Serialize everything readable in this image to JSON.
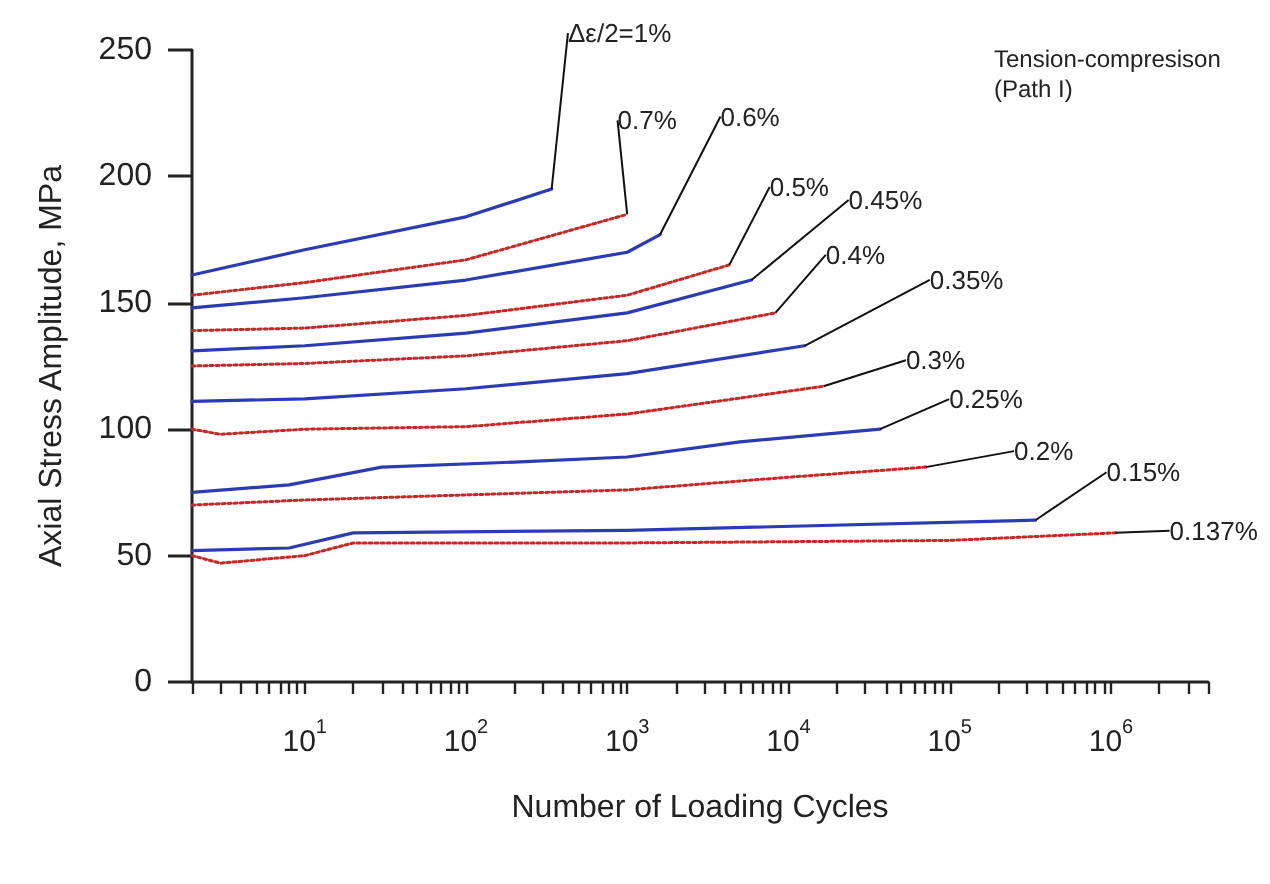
{
  "chart_data": {
    "type": "line",
    "xlabel": "Number of Loading Cycles",
    "ylabel": "Axial Stress Amplitude, MPa",
    "annotations": [
      "Tension-compresison (Path I)"
    ],
    "log": "x",
    "grid": false,
    "legend": false,
    "marker": "none",
    "xlim": [
      2,
      4000000
    ],
    "ylim": [
      0,
      250
    ],
    "yticks": [
      0,
      50,
      100,
      150,
      200,
      250
    ],
    "xticks": [
      {
        "value": 2,
        "label": null
      },
      {
        "value": 3,
        "label": null
      },
      {
        "value": 4,
        "label": null
      },
      {
        "value": 5,
        "label": null
      },
      {
        "value": 6,
        "label": null
      },
      {
        "value": 7,
        "label": null
      },
      {
        "value": 8,
        "label": null
      },
      {
        "value": 9,
        "label": null
      },
      {
        "value": 10,
        "label": "10$^{1}$"
      },
      {
        "value": 20,
        "label": null
      },
      {
        "value": 30,
        "label": null
      },
      {
        "value": 40,
        "label": null
      },
      {
        "value": 50,
        "label": null
      },
      {
        "value": 60,
        "label": null
      },
      {
        "value": 70,
        "label": null
      },
      {
        "value": 80,
        "label": null
      },
      {
        "value": 90,
        "label": null
      },
      {
        "value": 100,
        "label": "10$^{2}$"
      },
      {
        "value": 200,
        "label": null
      },
      {
        "value": 300,
        "label": null
      },
      {
        "value": 400,
        "label": null
      },
      {
        "value": 500,
        "label": null
      },
      {
        "value": 600,
        "label": null
      },
      {
        "value": 700,
        "label": null
      },
      {
        "value": 800,
        "label": null
      },
      {
        "value": 900,
        "label": null
      },
      {
        "value": 1000,
        "label": "10$^{3}$"
      },
      {
        "value": 2000,
        "label": null
      },
      {
        "value": 3000,
        "label": null
      },
      {
        "value": 4000,
        "label": null
      },
      {
        "value": 5000,
        "label": null
      },
      {
        "value": 6000,
        "label": null
      },
      {
        "value": 7000,
        "label": null
      },
      {
        "value": 8000,
        "label": null
      },
      {
        "value": 9000,
        "label": null
      },
      {
        "value": 10000,
        "label": "10$^{4}$"
      },
      {
        "value": 20000,
        "label": null
      },
      {
        "value": 30000,
        "label": null
      },
      {
        "value": 40000,
        "label": null
      },
      {
        "value": 50000,
        "label": null
      },
      {
        "value": 60000,
        "label": null
      },
      {
        "value": 70000,
        "label": null
      },
      {
        "value": 80000,
        "label": null
      },
      {
        "value": 90000,
        "label": null
      },
      {
        "value": 100000,
        "label": "10$^{5}$"
      },
      {
        "value": 200000,
        "label": null
      },
      {
        "value": 300000,
        "label": null
      },
      {
        "value": 400000,
        "label": null
      },
      {
        "value": 500000,
        "label": null
      },
      {
        "value": 600000,
        "label": null
      },
      {
        "value": 700000,
        "label": null
      },
      {
        "value": 800000,
        "label": null
      },
      {
        "value": 900000,
        "label": null
      },
      {
        "value": 1000000,
        "label": "10$^{6}$"
      },
      {
        "value": 2000000,
        "label": null
      },
      {
        "value": 3000000,
        "label": null
      },
      {
        "value": 4000000,
        "label": null
      }
    ],
    "series": [
      {
        "name": "Δε/2=1%",
        "color": "#2b3bb5",
        "line_style": "solid",
        "x": [
          2,
          10,
          100,
          340
        ],
        "values": [
          161,
          171,
          184,
          195
        ]
      },
      {
        "name": "0.7%",
        "color": "#c62828",
        "line_style": "dotted",
        "x": [
          2,
          10,
          100,
          1000
        ],
        "values": [
          153,
          158,
          167,
          185
        ]
      },
      {
        "name": "0.6%",
        "color": "#2b3bb5",
        "line_style": "solid",
        "x": [
          2,
          10,
          100,
          1000,
          1600
        ],
        "values": [
          148,
          152,
          159,
          170,
          177
        ]
      },
      {
        "name": "0.5%",
        "color": "#c62828",
        "line_style": "dotted",
        "x": [
          2,
          10,
          100,
          1000,
          4300
        ],
        "values": [
          139,
          140,
          145,
          153,
          165
        ]
      },
      {
        "name": "0.45%",
        "color": "#2b3bb5",
        "line_style": "solid",
        "x": [
          2,
          10,
          100,
          1000,
          5900
        ],
        "values": [
          131,
          133,
          138,
          146,
          159
        ]
      },
      {
        "name": "0.4%",
        "color": "#c62828",
        "line_style": "dotted",
        "x": [
          2,
          10,
          100,
          1000,
          8300
        ],
        "values": [
          125,
          126,
          129,
          135,
          146
        ]
      },
      {
        "name": "0.35%",
        "color": "#2b3bb5",
        "line_style": "solid",
        "x": [
          2,
          10,
          100,
          1000,
          12600
        ],
        "values": [
          111,
          112,
          116,
          122,
          133
        ]
      },
      {
        "name": "0.3%",
        "color": "#c62828",
        "line_style": "dotted",
        "x": [
          2,
          3,
          10,
          100,
          1000,
          16500
        ],
        "values": [
          100,
          98,
          100,
          101,
          106,
          117
        ]
      },
      {
        "name": "0.25%",
        "color": "#2b3bb5",
        "line_style": "solid",
        "x": [
          2,
          8,
          30,
          200,
          1000,
          5000,
          37000
        ],
        "values": [
          75,
          78,
          85,
          87,
          89,
          95,
          100
        ]
      },
      {
        "name": "0.2%",
        "color": "#c62828",
        "line_style": "dotted",
        "x": [
          2,
          10,
          100,
          1000,
          10000,
          71000
        ],
        "values": [
          70,
          72,
          74,
          76,
          81,
          85
        ]
      },
      {
        "name": "0.15%",
        "color": "#2b3bb5",
        "line_style": "solid",
        "x": [
          2,
          8,
          20,
          1000,
          340000
        ],
        "values": [
          52,
          53,
          59,
          60,
          64
        ]
      },
      {
        "name": "0.137%",
        "color": "#c62828",
        "line_style": "dotted",
        "x": [
          2,
          3,
          10,
          20,
          1000,
          100000,
          1070000
        ],
        "values": [
          50,
          47,
          50,
          55,
          55,
          56,
          59
        ]
      }
    ]
  }
}
